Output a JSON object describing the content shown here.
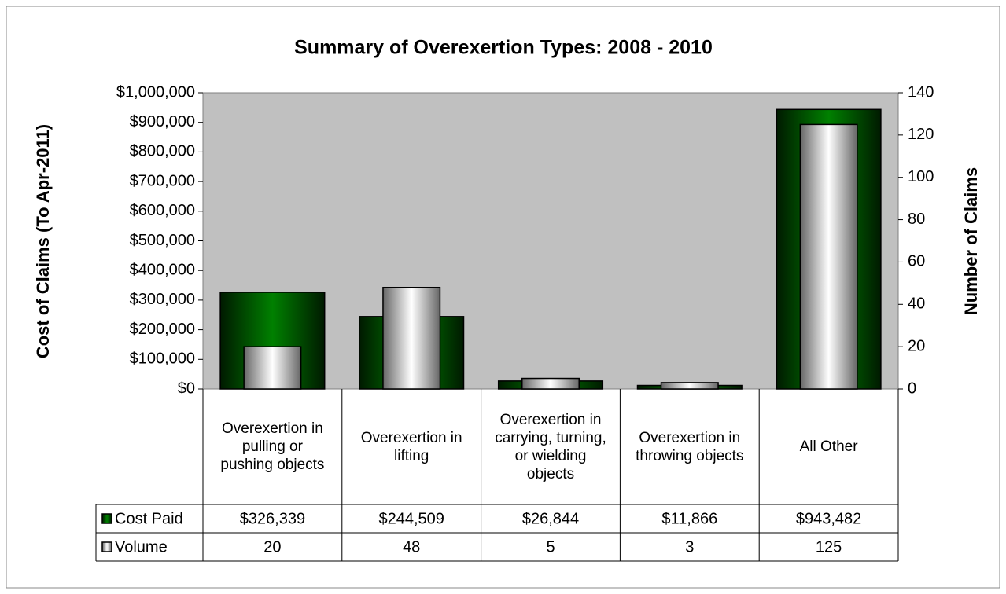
{
  "chart_data": {
    "type": "bar",
    "title": "Summary of Overexertion Types: 2008 - 2010",
    "ylabel": "Cost of Claims (To Apr-2011)",
    "y2label": "Number of Claims",
    "categories": [
      "Overexertion in pulling or pushing objects",
      "Overexertion in lifting",
      "Overexertion in carrying, turning, or wielding objects",
      "Overexertion in throwing objects",
      "All Other"
    ],
    "series": [
      {
        "name": "Cost Paid",
        "color": "#008000",
        "values": [
          326339,
          244509,
          26844,
          11866,
          943482
        ],
        "value_labels": [
          "$326,339",
          "$244,509",
          "$26,844",
          "$11,866",
          "$943,482"
        ]
      },
      {
        "name": "Volume",
        "color": "#ffffff",
        "axis": "y2",
        "values": [
          20,
          48,
          5,
          3,
          125
        ]
      }
    ],
    "ylim": [
      0,
      1000000
    ],
    "yticks": [
      {
        "value": 0,
        "label": "$0"
      },
      {
        "value": 100000,
        "label": "$100,000"
      },
      {
        "value": 200000,
        "label": "$200,000"
      },
      {
        "value": 300000,
        "label": "$300,000"
      },
      {
        "value": 400000,
        "label": "$400,000"
      },
      {
        "value": 500000,
        "label": "$500,000"
      },
      {
        "value": 600000,
        "label": "$600,000"
      },
      {
        "value": 700000,
        "label": "$700,000"
      },
      {
        "value": 800000,
        "label": "$800,000"
      },
      {
        "value": 900000,
        "label": "$900,000"
      },
      {
        "value": 1000000,
        "label": "$1,000,000"
      }
    ],
    "y2lim": [
      0,
      140
    ],
    "y2ticks": [
      0,
      20,
      40,
      60,
      80,
      100,
      120,
      140
    ],
    "plot_background": "#c0c0c0"
  }
}
